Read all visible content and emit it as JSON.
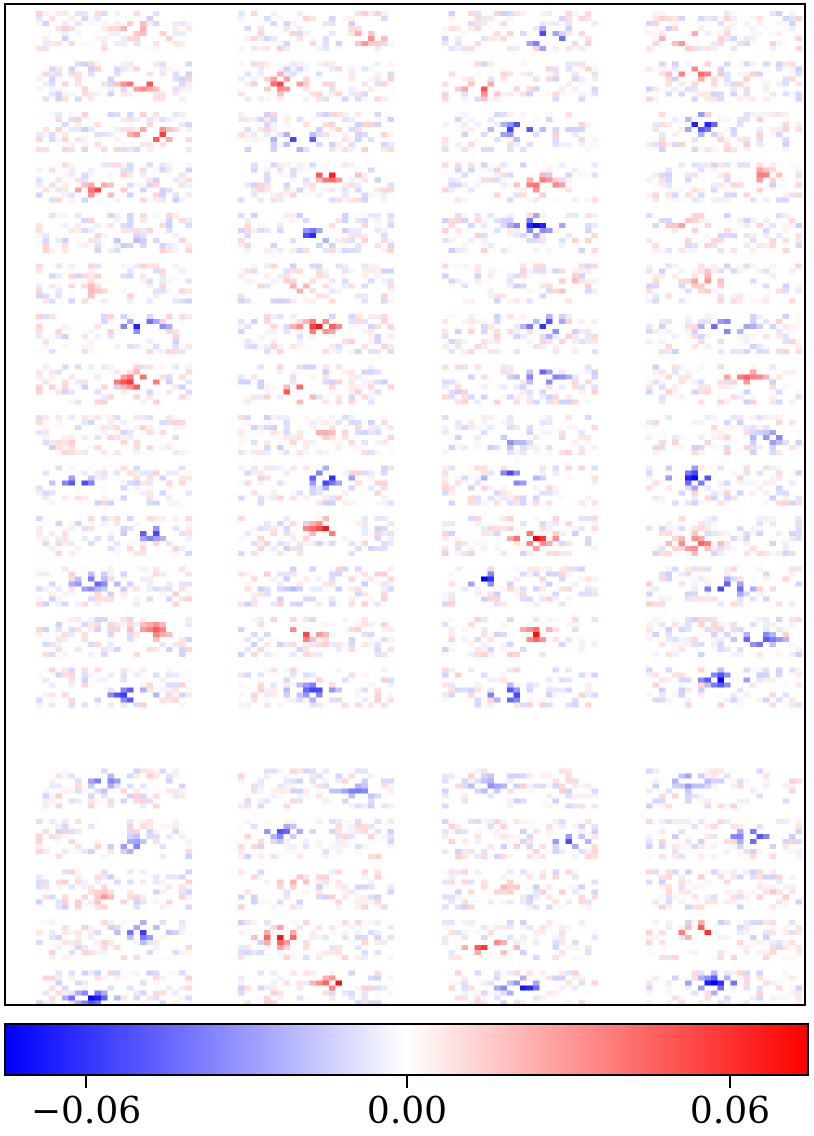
{
  "chart_data": {
    "type": "heatmap",
    "title": "",
    "xlabel": "",
    "ylabel": "",
    "colormap": "bwr",
    "colors": {
      "low": "#0000ff",
      "mid": "#ffffff",
      "high": "#ff0000"
    },
    "value_range": [
      -0.075,
      0.075
    ],
    "grid": false,
    "panel_columns": 4,
    "panel_rows": 19,
    "hot_spots": [
      {
        "row": 0,
        "col": 0,
        "value": 0.03
      },
      {
        "row": 0,
        "col": 1,
        "value": 0.04
      },
      {
        "row": 0,
        "col": 2,
        "value": -0.075
      },
      {
        "row": 0,
        "col": 3,
        "value": 0.055
      },
      {
        "row": 1,
        "col": 0,
        "value": 0.06
      },
      {
        "row": 1,
        "col": 1,
        "value": 0.055
      },
      {
        "row": 1,
        "col": 2,
        "value": 0.05
      },
      {
        "row": 1,
        "col": 3,
        "value": 0.05
      },
      {
        "row": 2,
        "col": 0,
        "value": 0.07
      },
      {
        "row": 2,
        "col": 1,
        "value": -0.07
      },
      {
        "row": 2,
        "col": 2,
        "value": -0.07
      },
      {
        "row": 2,
        "col": 3,
        "value": -0.075
      },
      {
        "row": 3,
        "col": 0,
        "value": 0.055
      },
      {
        "row": 3,
        "col": 1,
        "value": 0.07
      },
      {
        "row": 3,
        "col": 2,
        "value": 0.055
      },
      {
        "row": 3,
        "col": 3,
        "value": 0.04
      },
      {
        "row": 4,
        "col": 0,
        "value": -0.02
      },
      {
        "row": 4,
        "col": 1,
        "value": -0.06
      },
      {
        "row": 4,
        "col": 2,
        "value": -0.075
      },
      {
        "row": 4,
        "col": 3,
        "value": 0.03
      },
      {
        "row": 5,
        "col": 0,
        "value": 0.025
      },
      {
        "row": 5,
        "col": 1,
        "value": 0.03
      },
      {
        "row": 5,
        "col": 2,
        "value": 0.03
      },
      {
        "row": 5,
        "col": 3,
        "value": 0.035
      },
      {
        "row": 6,
        "col": 0,
        "value": -0.075
      },
      {
        "row": 6,
        "col": 1,
        "value": 0.07
      },
      {
        "row": 6,
        "col": 2,
        "value": -0.075
      },
      {
        "row": 6,
        "col": 3,
        "value": -0.06
      },
      {
        "row": 7,
        "col": 0,
        "value": 0.075
      },
      {
        "row": 7,
        "col": 1,
        "value": 0.07
      },
      {
        "row": 7,
        "col": 2,
        "value": -0.06
      },
      {
        "row": 7,
        "col": 3,
        "value": 0.05
      },
      {
        "row": 8,
        "col": 0,
        "value": 0.02
      },
      {
        "row": 8,
        "col": 1,
        "value": 0.025
      },
      {
        "row": 8,
        "col": 2,
        "value": -0.03
      },
      {
        "row": 8,
        "col": 3,
        "value": -0.04
      },
      {
        "row": 9,
        "col": 0,
        "value": -0.06
      },
      {
        "row": 9,
        "col": 1,
        "value": -0.075
      },
      {
        "row": 9,
        "col": 2,
        "value": -0.075
      },
      {
        "row": 9,
        "col": 3,
        "value": -0.075
      },
      {
        "row": 10,
        "col": 0,
        "value": -0.06
      },
      {
        "row": 10,
        "col": 1,
        "value": 0.07
      },
      {
        "row": 10,
        "col": 2,
        "value": 0.075
      },
      {
        "row": 10,
        "col": 3,
        "value": 0.05
      },
      {
        "row": 11,
        "col": 0,
        "value": -0.05
      },
      {
        "row": 11,
        "col": 1,
        "value": -0.03
      },
      {
        "row": 11,
        "col": 2,
        "value": -0.075
      },
      {
        "row": 11,
        "col": 3,
        "value": -0.07
      },
      {
        "row": 12,
        "col": 0,
        "value": 0.05
      },
      {
        "row": 12,
        "col": 1,
        "value": 0.07
      },
      {
        "row": 12,
        "col": 2,
        "value": 0.07
      },
      {
        "row": 12,
        "col": 3,
        "value": -0.06
      },
      {
        "row": 13,
        "col": 0,
        "value": -0.07
      },
      {
        "row": 13,
        "col": 1,
        "value": -0.06
      },
      {
        "row": 13,
        "col": 2,
        "value": -0.07
      },
      {
        "row": 13,
        "col": 3,
        "value": -0.07
      },
      {
        "row": 15,
        "col": 0,
        "value": -0.04
      },
      {
        "row": 15,
        "col": 1,
        "value": -0.04
      },
      {
        "row": 15,
        "col": 2,
        "value": -0.035
      },
      {
        "row": 15,
        "col": 3,
        "value": -0.04
      },
      {
        "row": 16,
        "col": 0,
        "value": -0.04
      },
      {
        "row": 16,
        "col": 1,
        "value": -0.05
      },
      {
        "row": 16,
        "col": 2,
        "value": -0.05
      },
      {
        "row": 16,
        "col": 3,
        "value": -0.06
      },
      {
        "row": 17,
        "col": 0,
        "value": 0.025
      },
      {
        "row": 17,
        "col": 1,
        "value": 0.025
      },
      {
        "row": 17,
        "col": 2,
        "value": 0.02
      },
      {
        "row": 17,
        "col": 3,
        "value": 0.025
      },
      {
        "row": 18,
        "col": 0,
        "value": -0.06
      },
      {
        "row": 18,
        "col": 1,
        "value": 0.07
      },
      {
        "row": 18,
        "col": 2,
        "value": 0.07
      },
      {
        "row": 18,
        "col": 3,
        "value": 0.075
      },
      {
        "row": 19,
        "col": 0,
        "value": -0.075
      },
      {
        "row": 19,
        "col": 1,
        "value": 0.07
      },
      {
        "row": 19,
        "col": 2,
        "value": -0.07
      },
      {
        "row": 19,
        "col": 3,
        "value": -0.075
      }
    ],
    "colorbar": {
      "orientation": "horizontal",
      "range": [
        -0.075,
        0.075
      ],
      "ticks": [
        {
          "value": -0.06,
          "label": "−0.06"
        },
        {
          "value": 0.0,
          "label": "0.00"
        },
        {
          "value": 0.06,
          "label": "0.06"
        }
      ]
    }
  }
}
